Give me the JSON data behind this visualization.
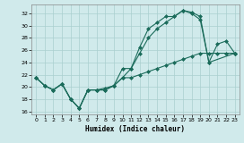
{
  "xlabel": "Humidex (Indice chaleur)",
  "bg_color": "#d0eaeb",
  "grid_color": "#aacfcf",
  "line_color": "#1a6b5a",
  "xlim": [
    -0.5,
    23.5
  ],
  "ylim": [
    15.5,
    33.5
  ],
  "xticks": [
    0,
    1,
    2,
    3,
    4,
    5,
    6,
    7,
    8,
    9,
    10,
    11,
    12,
    13,
    14,
    15,
    16,
    17,
    18,
    19,
    20,
    21,
    22,
    23
  ],
  "yticks": [
    16,
    18,
    20,
    22,
    24,
    26,
    28,
    30,
    32
  ],
  "line1_x": [
    0,
    1,
    2,
    3,
    4,
    5,
    6,
    7,
    8,
    9,
    10,
    11,
    12,
    13,
    14,
    15,
    16,
    17,
    18,
    19,
    20,
    23
  ],
  "line1_y": [
    21.5,
    20.2,
    19.5,
    20.5,
    18.0,
    16.5,
    19.5,
    19.5,
    19.5,
    20.2,
    21.5,
    23.0,
    25.5,
    28.0,
    29.5,
    30.5,
    31.5,
    32.5,
    32.0,
    31.0,
    24.0,
    25.5
  ],
  "line2_x": [
    0,
    1,
    2,
    3,
    4,
    5,
    6,
    7,
    8,
    9,
    10,
    11,
    12,
    13,
    14,
    15,
    16,
    17,
    18,
    19,
    20,
    21,
    22,
    23
  ],
  "line2_y": [
    21.5,
    20.2,
    19.5,
    20.5,
    18.0,
    16.5,
    19.5,
    19.5,
    19.5,
    20.2,
    23.0,
    23.0,
    26.5,
    29.5,
    30.5,
    31.5,
    31.5,
    32.5,
    32.2,
    31.5,
    24.0,
    27.0,
    27.5,
    25.5
  ],
  "line3_x": [
    0,
    1,
    2,
    3,
    4,
    5,
    6,
    7,
    8,
    9,
    10,
    11,
    12,
    13,
    14,
    15,
    16,
    17,
    18,
    19,
    20,
    21,
    22,
    23
  ],
  "line3_y": [
    21.5,
    20.2,
    19.5,
    20.5,
    18.0,
    16.5,
    19.5,
    19.5,
    19.8,
    20.2,
    21.5,
    21.5,
    22.0,
    22.5,
    23.0,
    23.5,
    24.0,
    24.5,
    25.0,
    25.5,
    25.5,
    25.5,
    25.5,
    25.5
  ]
}
